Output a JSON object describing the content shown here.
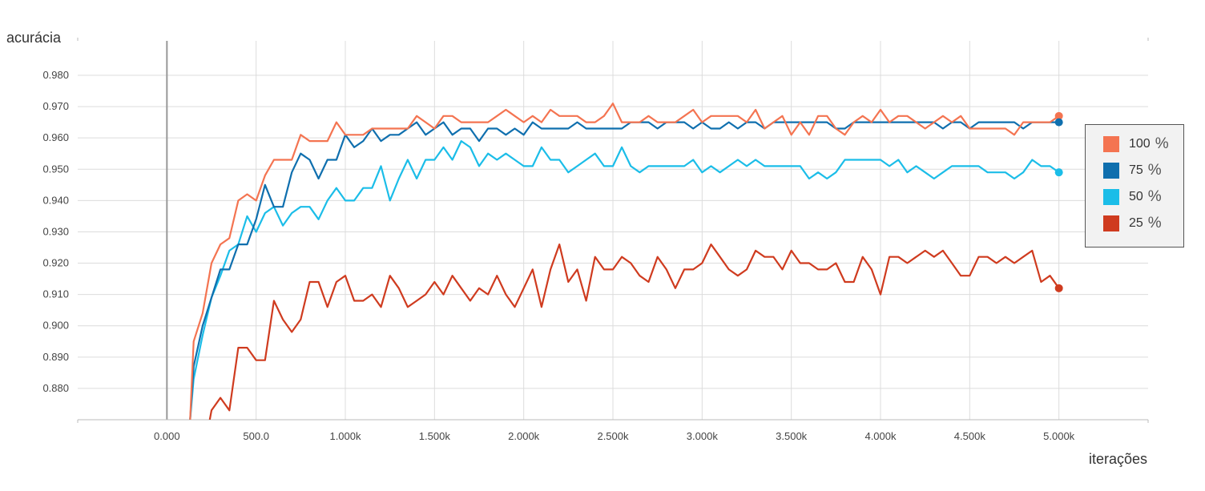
{
  "chart_data": {
    "type": "line",
    "ylabel": "acurácia",
    "xlabel": "iterações",
    "xlim": [
      -500,
      5500
    ],
    "ylim": [
      0.87,
      0.991
    ],
    "x_ticks": [
      0,
      500,
      1000,
      1500,
      2000,
      2500,
      3000,
      3500,
      4000,
      4500,
      5000
    ],
    "x_tick_labels": [
      "0.000",
      "500.0",
      "1.000k",
      "1.500k",
      "2.000k",
      "2.500k",
      "3.000k",
      "3.500k",
      "4.000k",
      "4.500k",
      "5.000k"
    ],
    "y_ticks": [
      0.88,
      0.89,
      0.9,
      0.91,
      0.92,
      0.93,
      0.94,
      0.95,
      0.96,
      0.97,
      0.98
    ],
    "y_tick_labels": [
      "0.880",
      "0.890",
      "0.900",
      "0.910",
      "0.920",
      "0.930",
      "0.940",
      "0.950",
      "0.960",
      "0.970",
      "0.980"
    ],
    "grid": true,
    "legend_position": "right",
    "series": [
      {
        "name": "100",
        "color": "#f47451",
        "x": [
          130,
          150,
          200,
          250,
          300,
          350,
          400,
          450,
          500,
          550,
          600,
          650,
          700,
          750,
          800,
          850,
          900,
          950,
          1000,
          1050,
          1100,
          1150,
          1200,
          1250,
          1300,
          1350,
          1400,
          1450,
          1500,
          1550,
          1600,
          1650,
          1700,
          1750,
          1800,
          1850,
          1900,
          1950,
          2000,
          2050,
          2100,
          2150,
          2200,
          2250,
          2300,
          2350,
          2400,
          2450,
          2500,
          2550,
          2600,
          2650,
          2700,
          2750,
          2800,
          2850,
          2900,
          2950,
          3000,
          3050,
          3100,
          3150,
          3200,
          3250,
          3300,
          3350,
          3400,
          3450,
          3500,
          3550,
          3600,
          3650,
          3700,
          3750,
          3800,
          3850,
          3900,
          3950,
          4000,
          4050,
          4100,
          4150,
          4200,
          4250,
          4300,
          4350,
          4400,
          4450,
          4500,
          4550,
          4600,
          4650,
          4700,
          4750,
          4800,
          4850,
          4900,
          4950,
          5000
        ],
        "y": [
          0.87,
          0.895,
          0.904,
          0.92,
          0.926,
          0.928,
          0.94,
          0.942,
          0.94,
          0.948,
          0.953,
          0.953,
          0.953,
          0.961,
          0.959,
          0.959,
          0.959,
          0.965,
          0.961,
          0.961,
          0.961,
          0.963,
          0.963,
          0.963,
          0.963,
          0.963,
          0.967,
          0.965,
          0.963,
          0.967,
          0.967,
          0.965,
          0.965,
          0.965,
          0.965,
          0.967,
          0.969,
          0.967,
          0.965,
          0.967,
          0.965,
          0.969,
          0.967,
          0.967,
          0.967,
          0.965,
          0.965,
          0.967,
          0.971,
          0.965,
          0.965,
          0.965,
          0.967,
          0.965,
          0.965,
          0.965,
          0.967,
          0.969,
          0.965,
          0.967,
          0.967,
          0.967,
          0.967,
          0.965,
          0.969,
          0.963,
          0.965,
          0.967,
          0.961,
          0.965,
          0.961,
          0.967,
          0.967,
          0.963,
          0.961,
          0.965,
          0.967,
          0.965,
          0.969,
          0.965,
          0.967,
          0.967,
          0.965,
          0.963,
          0.965,
          0.967,
          0.965,
          0.967,
          0.963,
          0.963,
          0.963,
          0.963,
          0.963,
          0.961,
          0.965,
          0.965,
          0.965,
          0.965,
          0.967
        ]
      },
      {
        "name": "75",
        "color": "#0f6fae",
        "x": [
          130,
          150,
          200,
          250,
          300,
          350,
          400,
          450,
          500,
          550,
          600,
          650,
          700,
          750,
          800,
          850,
          900,
          950,
          1000,
          1050,
          1100,
          1150,
          1200,
          1250,
          1300,
          1350,
          1400,
          1450,
          1500,
          1550,
          1600,
          1650,
          1700,
          1750,
          1800,
          1850,
          1900,
          1950,
          2000,
          2050,
          2100,
          2150,
          2200,
          2250,
          2300,
          2350,
          2400,
          2450,
          2500,
          2550,
          2600,
          2650,
          2700,
          2750,
          2800,
          2850,
          2900,
          2950,
          3000,
          3050,
          3100,
          3150,
          3200,
          3250,
          3300,
          3350,
          3400,
          3450,
          3500,
          3550,
          3600,
          3650,
          3700,
          3750,
          3800,
          3850,
          3900,
          3950,
          4000,
          4050,
          4100,
          4150,
          4200,
          4250,
          4300,
          4350,
          4400,
          4450,
          4500,
          4550,
          4600,
          4650,
          4700,
          4750,
          4800,
          4850,
          4900,
          4950,
          5000
        ],
        "y": [
          0.87,
          0.887,
          0.9,
          0.909,
          0.918,
          0.918,
          0.926,
          0.926,
          0.934,
          0.945,
          0.938,
          0.938,
          0.949,
          0.955,
          0.953,
          0.947,
          0.953,
          0.953,
          0.961,
          0.957,
          0.959,
          0.963,
          0.959,
          0.961,
          0.961,
          0.963,
          0.965,
          0.961,
          0.963,
          0.965,
          0.961,
          0.963,
          0.963,
          0.959,
          0.963,
          0.963,
          0.961,
          0.963,
          0.961,
          0.965,
          0.963,
          0.963,
          0.963,
          0.963,
          0.965,
          0.963,
          0.963,
          0.963,
          0.963,
          0.963,
          0.965,
          0.965,
          0.965,
          0.963,
          0.965,
          0.965,
          0.965,
          0.963,
          0.965,
          0.963,
          0.963,
          0.965,
          0.963,
          0.965,
          0.965,
          0.963,
          0.965,
          0.965,
          0.965,
          0.965,
          0.965,
          0.965,
          0.965,
          0.963,
          0.963,
          0.965,
          0.965,
          0.965,
          0.965,
          0.965,
          0.965,
          0.965,
          0.965,
          0.965,
          0.965,
          0.963,
          0.965,
          0.965,
          0.963,
          0.965,
          0.965,
          0.965,
          0.965,
          0.965,
          0.963,
          0.965,
          0.965,
          0.965,
          0.965
        ]
      },
      {
        "name": "50",
        "color": "#1bbde8",
        "x": [
          130,
          150,
          200,
          250,
          300,
          350,
          400,
          450,
          500,
          550,
          600,
          650,
          700,
          750,
          800,
          850,
          900,
          950,
          1000,
          1050,
          1100,
          1150,
          1200,
          1250,
          1300,
          1350,
          1400,
          1450,
          1500,
          1550,
          1600,
          1650,
          1700,
          1750,
          1800,
          1850,
          1900,
          1950,
          2000,
          2050,
          2100,
          2150,
          2200,
          2250,
          2300,
          2350,
          2400,
          2450,
          2500,
          2550,
          2600,
          2650,
          2700,
          2750,
          2800,
          2850,
          2900,
          2950,
          3000,
          3050,
          3100,
          3150,
          3200,
          3250,
          3300,
          3350,
          3400,
          3450,
          3500,
          3550,
          3600,
          3650,
          3700,
          3750,
          3800,
          3850,
          3900,
          3950,
          4000,
          4050,
          4100,
          4150,
          4200,
          4250,
          4300,
          4350,
          4400,
          4450,
          4500,
          4550,
          4600,
          4650,
          4700,
          4750,
          4800,
          4850,
          4900,
          4950,
          5000
        ],
        "y": [
          0.87,
          0.883,
          0.897,
          0.909,
          0.916,
          0.924,
          0.926,
          0.935,
          0.93,
          0.936,
          0.938,
          0.932,
          0.936,
          0.938,
          0.938,
          0.934,
          0.94,
          0.944,
          0.94,
          0.94,
          0.944,
          0.944,
          0.951,
          0.94,
          0.947,
          0.953,
          0.947,
          0.953,
          0.953,
          0.957,
          0.953,
          0.959,
          0.957,
          0.951,
          0.955,
          0.953,
          0.955,
          0.953,
          0.951,
          0.951,
          0.957,
          0.953,
          0.953,
          0.949,
          0.951,
          0.953,
          0.955,
          0.951,
          0.951,
          0.957,
          0.951,
          0.949,
          0.951,
          0.951,
          0.951,
          0.951,
          0.951,
          0.953,
          0.949,
          0.951,
          0.949,
          0.951,
          0.953,
          0.951,
          0.953,
          0.951,
          0.951,
          0.951,
          0.951,
          0.951,
          0.947,
          0.949,
          0.947,
          0.949,
          0.953,
          0.953,
          0.953,
          0.953,
          0.953,
          0.951,
          0.953,
          0.949,
          0.951,
          0.949,
          0.947,
          0.949,
          0.951,
          0.951,
          0.951,
          0.951,
          0.949,
          0.949,
          0.949,
          0.947,
          0.949,
          0.953,
          0.951,
          0.951,
          0.949
        ]
      },
      {
        "name": "25",
        "color": "#cf3b1f",
        "x": [
          240,
          250,
          300,
          350,
          400,
          450,
          500,
          550,
          600,
          650,
          700,
          750,
          800,
          850,
          900,
          950,
          1000,
          1050,
          1100,
          1150,
          1200,
          1250,
          1300,
          1350,
          1400,
          1450,
          1500,
          1550,
          1600,
          1650,
          1700,
          1750,
          1800,
          1850,
          1900,
          1950,
          2000,
          2050,
          2100,
          2150,
          2200,
          2250,
          2300,
          2350,
          2400,
          2450,
          2500,
          2550,
          2600,
          2650,
          2700,
          2750,
          2800,
          2850,
          2900,
          2950,
          3000,
          3050,
          3100,
          3150,
          3200,
          3250,
          3300,
          3350,
          3400,
          3450,
          3500,
          3550,
          3600,
          3650,
          3700,
          3750,
          3800,
          3850,
          3900,
          3950,
          4000,
          4050,
          4100,
          4150,
          4200,
          4250,
          4300,
          4350,
          4400,
          4450,
          4500,
          4550,
          4600,
          4650,
          4700,
          4750,
          4800,
          4850,
          4900,
          4950,
          5000
        ],
        "y": [
          0.87,
          0.873,
          0.877,
          0.873,
          0.893,
          0.893,
          0.889,
          0.889,
          0.908,
          0.902,
          0.898,
          0.902,
          0.914,
          0.914,
          0.906,
          0.914,
          0.916,
          0.908,
          0.908,
          0.91,
          0.906,
          0.916,
          0.912,
          0.906,
          0.908,
          0.91,
          0.914,
          0.91,
          0.916,
          0.912,
          0.908,
          0.912,
          0.91,
          0.916,
          0.91,
          0.906,
          0.912,
          0.918,
          0.906,
          0.918,
          0.926,
          0.914,
          0.918,
          0.908,
          0.922,
          0.918,
          0.918,
          0.922,
          0.92,
          0.916,
          0.914,
          0.922,
          0.918,
          0.912,
          0.918,
          0.918,
          0.92,
          0.926,
          0.922,
          0.918,
          0.916,
          0.918,
          0.924,
          0.922,
          0.922,
          0.918,
          0.924,
          0.92,
          0.92,
          0.918,
          0.918,
          0.92,
          0.914,
          0.914,
          0.922,
          0.918,
          0.91,
          0.922,
          0.922,
          0.92,
          0.922,
          0.924,
          0.922,
          0.924,
          0.92,
          0.916,
          0.916,
          0.922,
          0.922,
          0.92,
          0.922,
          0.92,
          0.922,
          0.924,
          0.914,
          0.916,
          0.912
        ]
      }
    ]
  },
  "legend": {
    "unit": "%",
    "items": [
      {
        "label": "100",
        "color": "#f47451"
      },
      {
        "label": "75",
        "color": "#0f6fae"
      },
      {
        "label": "50",
        "color": "#1bbde8"
      },
      {
        "label": "25",
        "color": "#cf3b1f"
      }
    ]
  }
}
